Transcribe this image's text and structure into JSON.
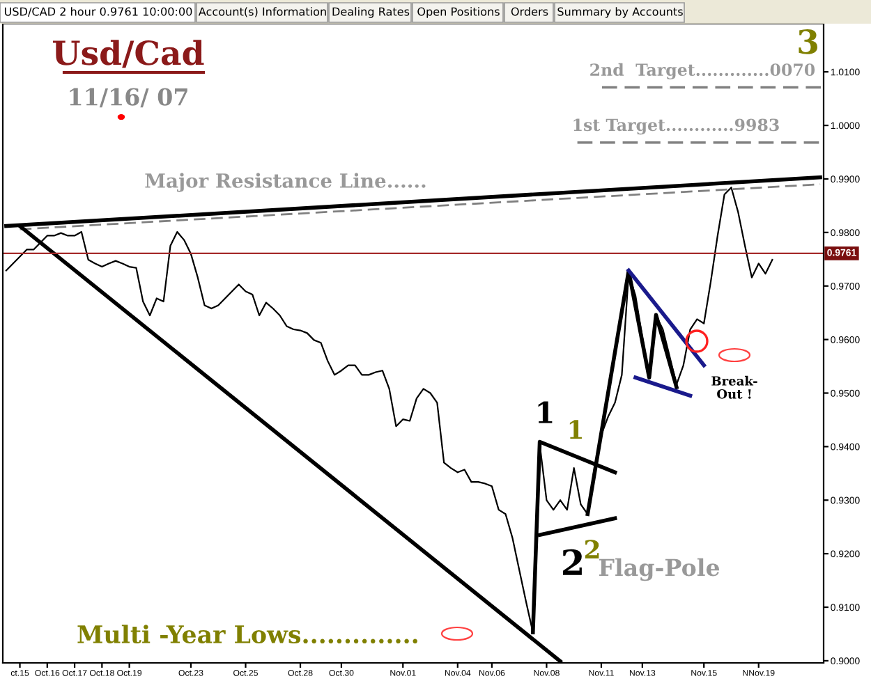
{
  "chart_data": {
    "type": "line",
    "title": "Usd/Cad",
    "subtitle": "11/16/ 07",
    "categories": [
      null,
      null,
      "ct.15",
      null,
      null,
      null,
      "Oct.16",
      null,
      null,
      null,
      "Oct.17",
      null,
      null,
      null,
      "Oct.18",
      null,
      null,
      null,
      "Oct.19",
      null,
      null,
      null,
      null,
      null,
      null,
      null,
      null,
      "Oct.23",
      null,
      null,
      null,
      null,
      null,
      null,
      null,
      "Oct.25",
      null,
      null,
      null,
      null,
      null,
      null,
      null,
      "Oct.28",
      null,
      null,
      null,
      null,
      null,
      "Oct.30",
      null,
      null,
      null,
      null,
      null,
      null,
      null,
      null,
      "Nov.01",
      null,
      null,
      null,
      null,
      null,
      null,
      null,
      "Nov.04",
      null,
      null,
      null,
      null,
      "Nov.06",
      null,
      null,
      null,
      null,
      null,
      null,
      null,
      "Nov.08",
      null,
      null,
      null,
      null,
      null,
      null,
      null,
      "Nov.11",
      null,
      null,
      null,
      null,
      null,
      "Nov.13",
      null,
      null,
      null,
      null,
      null,
      null,
      null,
      null,
      "Nov.15",
      null,
      null,
      null,
      null,
      null,
      null,
      null,
      "NNov.19",
      null,
      null,
      null,
      null,
      null,
      null,
      null,
      null,
      null
    ],
    "series": [
      {
        "color": "#000000",
        "values": [
          0.9729,
          0.9742,
          0.9755,
          0.9768,
          0.9768,
          0.9781,
          0.9794,
          0.9794,
          0.9799,
          0.9794,
          0.9794,
          0.9801,
          0.9749,
          0.9742,
          0.9736,
          0.9742,
          0.9747,
          0.9742,
          0.9736,
          0.9734,
          0.9671,
          0.9645,
          0.9677,
          0.9671,
          0.9775,
          0.9801,
          0.9786,
          0.976,
          0.9716,
          0.9664,
          0.9658,
          0.9664,
          0.9677,
          0.969,
          0.9703,
          0.969,
          0.9684,
          0.9645,
          0.9669,
          0.9658,
          0.9645,
          0.9625,
          0.9619,
          0.9617,
          0.9612,
          0.9599,
          0.9594,
          0.956,
          0.9534,
          0.9542,
          0.9552,
          0.9552,
          0.9534,
          0.9534,
          0.9539,
          0.9542,
          0.9508,
          0.9438,
          0.9451,
          0.9448,
          0.949,
          0.9508,
          0.95,
          0.9482,
          0.937,
          0.936,
          0.9352,
          0.9357,
          0.9334,
          0.9334,
          0.9331,
          0.9326,
          0.9282,
          0.9274,
          0.923,
          0.917,
          0.911,
          0.9053,
          0.9404,
          0.93,
          0.9282,
          0.93,
          0.9282,
          0.936,
          0.9292,
          0.9274,
          0.936,
          0.9422,
          0.9456,
          0.9482,
          0.9534,
          0.9723,
          0.9682,
          0.9604,
          0.9534,
          0.9645,
          0.9619,
          0.9568,
          0.9516,
          0.9552,
          0.9619,
          0.9638,
          0.963,
          0.9708,
          0.9794,
          0.9871,
          0.9884,
          0.9838,
          0.9775,
          0.9716,
          0.9742,
          0.9723,
          0.9749,
          null,
          null,
          null,
          null,
          null,
          null,
          null
        ]
      },
      {
        "color": "#000000",
        "values": [
          0.9812,
          null,
          null,
          null,
          null,
          null,
          null,
          null,
          null,
          null,
          null,
          null,
          null,
          null,
          null,
          null,
          null,
          null,
          null,
          null,
          null,
          null,
          null,
          null,
          null,
          null,
          null,
          null,
          null,
          null,
          null,
          null,
          null,
          null,
          null,
          null,
          null,
          null,
          null,
          null,
          null,
          null,
          null,
          null,
          null,
          null,
          null,
          null,
          null,
          null,
          null,
          null,
          null,
          null,
          null,
          null,
          null,
          null,
          null,
          null,
          null,
          null,
          null,
          null,
          null,
          null,
          null,
          null,
          null,
          null,
          null,
          null,
          null,
          null,
          null,
          null,
          null,
          null,
          null,
          null,
          null,
          null,
          null,
          null,
          null,
          null,
          null,
          null,
          null,
          null,
          null,
          null,
          null,
          null,
          null,
          null,
          null,
          null,
          null,
          null,
          null,
          null,
          null,
          null,
          null,
          null,
          null,
          null,
          null,
          null,
          null,
          null,
          null,
          null,
          null,
          null,
          null,
          null,
          null,
          0.9903
        ]
      },
      {
        "color": "#808080",
        "line_style": "dashed",
        "values": [
          null,
          null,
          0.9806,
          null,
          null,
          null,
          null,
          null,
          null,
          null,
          null,
          null,
          null,
          null,
          null,
          null,
          null,
          null,
          null,
          null,
          null,
          null,
          null,
          null,
          null,
          null,
          null,
          null,
          null,
          null,
          null,
          null,
          null,
          null,
          null,
          null,
          null,
          null,
          null,
          null,
          null,
          null,
          null,
          null,
          null,
          null,
          null,
          null,
          null,
          null,
          null,
          null,
          null,
          null,
          null,
          null,
          null,
          null,
          null,
          null,
          null,
          null,
          null,
          null,
          null,
          null,
          null,
          null,
          null,
          null,
          null,
          null,
          null,
          null,
          null,
          null,
          null,
          null,
          null,
          null,
          null,
          null,
          null,
          null,
          null,
          null,
          null,
          null,
          null,
          null,
          null,
          null,
          null,
          null,
          null,
          null,
          null,
          null,
          null,
          null,
          null,
          null,
          null,
          null,
          null,
          null,
          null,
          null,
          null,
          null,
          null,
          null,
          null,
          null,
          null,
          null,
          null,
          null,
          null,
          0.989
        ]
      },
      {
        "color": "#000000",
        "values": [
          null,
          null,
          0.9812,
          null,
          null,
          null,
          null,
          null,
          null,
          null,
          null,
          null,
          null,
          null,
          null,
          null,
          null,
          null,
          null,
          null,
          null,
          null,
          null,
          null,
          null,
          null,
          null,
          null,
          null,
          null,
          null,
          null,
          null,
          null,
          null,
          null,
          null,
          null,
          null,
          null,
          null,
          null,
          null,
          null,
          null,
          null,
          null,
          null,
          null,
          null,
          null,
          null,
          null,
          null,
          null,
          null,
          null,
          null,
          null,
          null,
          null,
          null,
          null,
          null,
          null,
          null,
          null,
          null,
          null,
          null,
          null,
          null,
          null,
          null,
          null,
          null,
          null,
          null,
          null,
          null,
          null,
          0.8999,
          null,
          null,
          null,
          null,
          null,
          null,
          null,
          null,
          null,
          null,
          null,
          null,
          null,
          null,
          null,
          null,
          null,
          null,
          null,
          null,
          null,
          null,
          null,
          null,
          null,
          null,
          null,
          null,
          null,
          null,
          null,
          null,
          null,
          null,
          null,
          null,
          null,
          null
        ]
      },
      {
        "color": "#000000",
        "values": [
          null,
          null,
          null,
          null,
          null,
          null,
          null,
          null,
          null,
          null,
          null,
          null,
          null,
          null,
          null,
          null,
          null,
          null,
          null,
          null,
          null,
          null,
          null,
          null,
          null,
          null,
          null,
          null,
          null,
          null,
          null,
          null,
          null,
          null,
          null,
          null,
          null,
          null,
          null,
          null,
          null,
          null,
          null,
          null,
          null,
          null,
          null,
          null,
          null,
          null,
          null,
          null,
          null,
          null,
          null,
          null,
          null,
          null,
          null,
          null,
          null,
          null,
          null,
          null,
          null,
          null,
          null,
          null,
          null,
          null,
          null,
          null,
          null,
          null,
          null,
          null,
          null,
          0.9053,
          0.9409,
          null,
          null,
          null,
          null,
          null,
          null,
          null,
          null,
          null,
          null,
          0.9352,
          null,
          null,
          null,
          null,
          null,
          null,
          null,
          null,
          null,
          null,
          null,
          null,
          null,
          null,
          null,
          null,
          null,
          null,
          null,
          null,
          null,
          null,
          null,
          null,
          null,
          null,
          null,
          null,
          null,
          null
        ]
      },
      {
        "color": "#000000",
        "values": [
          null,
          null,
          null,
          null,
          null,
          null,
          null,
          null,
          null,
          null,
          null,
          null,
          null,
          null,
          null,
          null,
          null,
          null,
          null,
          null,
          null,
          null,
          null,
          null,
          null,
          null,
          null,
          null,
          null,
          null,
          null,
          null,
          null,
          null,
          null,
          null,
          null,
          null,
          null,
          null,
          null,
          null,
          null,
          null,
          null,
          null,
          null,
          null,
          null,
          null,
          null,
          null,
          null,
          null,
          null,
          null,
          null,
          null,
          null,
          null,
          null,
          null,
          null,
          null,
          null,
          null,
          null,
          null,
          null,
          null,
          null,
          null,
          null,
          null,
          null,
          null,
          null,
          null,
          0.9235,
          null,
          null,
          null,
          null,
          null,
          null,
          null,
          null,
          null,
          null,
          0.9266,
          null,
          null,
          null,
          null,
          null,
          null,
          null,
          null,
          null,
          null,
          null,
          null,
          null,
          null,
          null,
          null,
          null,
          null,
          null,
          null,
          null,
          null,
          null,
          null,
          null,
          null,
          null,
          null,
          null,
          null
        ]
      },
      {
        "color": "#000000",
        "values": [
          null,
          null,
          null,
          null,
          null,
          null,
          null,
          null,
          null,
          null,
          null,
          null,
          null,
          null,
          null,
          null,
          null,
          null,
          null,
          null,
          null,
          null,
          null,
          null,
          null,
          null,
          null,
          null,
          null,
          null,
          null,
          null,
          null,
          null,
          null,
          null,
          null,
          null,
          null,
          null,
          null,
          null,
          null,
          null,
          null,
          null,
          null,
          null,
          null,
          null,
          null,
          null,
          null,
          null,
          null,
          null,
          null,
          null,
          null,
          null,
          null,
          null,
          null,
          null,
          null,
          null,
          null,
          null,
          null,
          null,
          null,
          null,
          null,
          null,
          null,
          null,
          null,
          null,
          null,
          null,
          null,
          null,
          null,
          null,
          null,
          0.9274,
          null,
          null,
          null,
          null,
          null,
          0.9728,
          null,
          null,
          0.9529,
          0.9646,
          null,
          null,
          0.9511,
          null,
          null,
          null,
          null,
          null,
          null,
          null,
          null,
          null,
          null,
          null,
          null,
          null,
          null,
          null,
          null,
          null,
          null,
          null,
          null,
          null
        ]
      },
      {
        "color": "#1a1a8c",
        "values": [
          null,
          null,
          null,
          null,
          null,
          null,
          null,
          null,
          null,
          null,
          null,
          null,
          null,
          null,
          null,
          null,
          null,
          null,
          null,
          null,
          null,
          null,
          null,
          null,
          null,
          null,
          null,
          null,
          null,
          null,
          null,
          null,
          null,
          null,
          null,
          null,
          null,
          null,
          null,
          null,
          null,
          null,
          null,
          null,
          null,
          null,
          null,
          null,
          null,
          null,
          null,
          null,
          null,
          null,
          null,
          null,
          null,
          null,
          null,
          null,
          null,
          null,
          null,
          null,
          null,
          null,
          null,
          null,
          null,
          null,
          null,
          null,
          null,
          null,
          null,
          null,
          null,
          null,
          null,
          null,
          null,
          null,
          null,
          null,
          null,
          null,
          null,
          null,
          null,
          null,
          null,
          0.9729,
          null,
          null,
          null,
          null,
          null,
          null,
          null,
          null,
          null,
          null,
          0.9552,
          null,
          null,
          null,
          null,
          null,
          null,
          null,
          null,
          null,
          null,
          null,
          null,
          null,
          null,
          null,
          null,
          null
        ]
      },
      {
        "color": "#1a1a8c",
        "values": [
          null,
          null,
          null,
          null,
          null,
          null,
          null,
          null,
          null,
          null,
          null,
          null,
          null,
          null,
          null,
          null,
          null,
          null,
          null,
          null,
          null,
          null,
          null,
          null,
          null,
          null,
          null,
          null,
          null,
          null,
          null,
          null,
          null,
          null,
          null,
          null,
          null,
          null,
          null,
          null,
          null,
          null,
          null,
          null,
          null,
          null,
          null,
          null,
          null,
          null,
          null,
          null,
          null,
          null,
          null,
          null,
          null,
          null,
          null,
          null,
          null,
          null,
          null,
          null,
          null,
          null,
          null,
          null,
          null,
          null,
          null,
          null,
          null,
          null,
          null,
          null,
          null,
          null,
          null,
          null,
          null,
          null,
          null,
          null,
          null,
          null,
          null,
          null,
          null,
          null,
          null,
          null,
          0.9529,
          null,
          null,
          null,
          null,
          null,
          null,
          null,
          0.9495,
          null,
          null,
          null,
          null,
          null,
          null,
          null,
          null,
          null,
          null,
          null,
          null,
          null,
          null,
          null,
          null,
          null,
          null,
          null
        ]
      }
    ],
    "ylim": [
      0.8996,
      1.019
    ],
    "yticks": [
      {
        "value": 0.9,
        "label": "0.9000"
      },
      {
        "value": 0.91,
        "label": "0.9100"
      },
      {
        "value": 0.92,
        "label": "0.9200"
      },
      {
        "value": 0.93,
        "label": "0.9300"
      },
      {
        "value": 0.94,
        "label": "0.9400"
      },
      {
        "value": 0.95,
        "label": "0.9500"
      },
      {
        "value": 0.96,
        "label": "0.9600"
      },
      {
        "value": 0.97,
        "label": "0.9700"
      },
      {
        "value": 0.98,
        "label": "0.9800"
      },
      {
        "value": 0.99,
        "label": "0.9900"
      },
      {
        "value": 1.0,
        "label": "1.0000"
      },
      {
        "value": 1.01,
        "label": "1.0100"
      }
    ],
    "ref_lines": [
      {
        "axis": "y",
        "value": 0.9761,
        "label": "0.9761",
        "color": "#a52a2a"
      },
      {
        "axis": "y",
        "value": 0.9968,
        "label": "1st Target............9983",
        "color": "#808080",
        "line_style": "dashed"
      },
      {
        "axis": "y",
        "value": 1.0071,
        "label": "2nd  Target.............0070",
        "color": "#808080",
        "line_style": "dashed"
      }
    ],
    "annotations": [
      "USD/CAD 2 hour 0.9761 10:00:00",
      "Account(s) Information",
      "Dealing Rates",
      "Open Positions",
      "Orders",
      "Summary by Accounts",
      "3",
      "Major Resistance Line......",
      "1",
      "1",
      "2",
      "2",
      "Flag-Pole",
      "Break-\nOut !",
      "Multi -Year Lows.............."
    ],
    "grid": false,
    "marker": "none"
  }
}
